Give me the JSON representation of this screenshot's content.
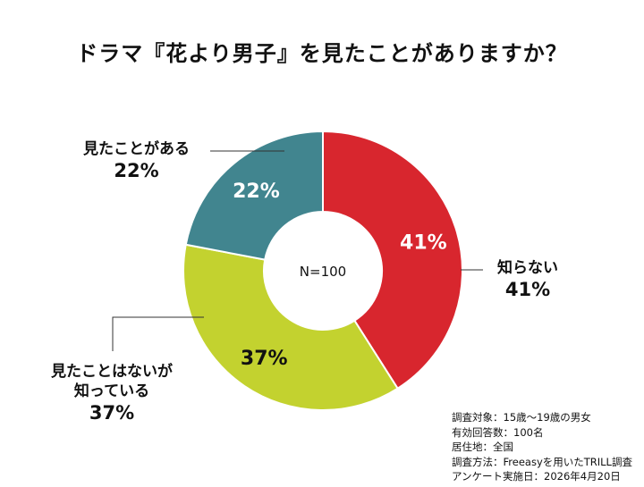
{
  "title": "ドラマ『花より男子』を見たことがありますか？",
  "chart_data": {
    "type": "pie",
    "donut": true,
    "title": "ドラマ『花より男子』を見たことがありますか？",
    "center_label": "N=100",
    "slices": [
      {
        "label": "知らない",
        "value": 41,
        "display": "41%",
        "color": "#d8262e"
      },
      {
        "label": "見たことはないが知っている",
        "label_lines": [
          "見たことはないが",
          "知っている"
        ],
        "value": 37,
        "display": "37%",
        "color": "#c3d22f"
      },
      {
        "label": "見たことがある",
        "value": 22,
        "display": "22%",
        "color": "#41858f"
      }
    ]
  },
  "notes": [
    "調査対象：15歳～19歳の男女",
    "有効回答数：100名",
    "居住地：全国",
    "調査方法：Freeasyを用いたTRILL調査",
    "アンケート実施日：2026年4月20日"
  ]
}
